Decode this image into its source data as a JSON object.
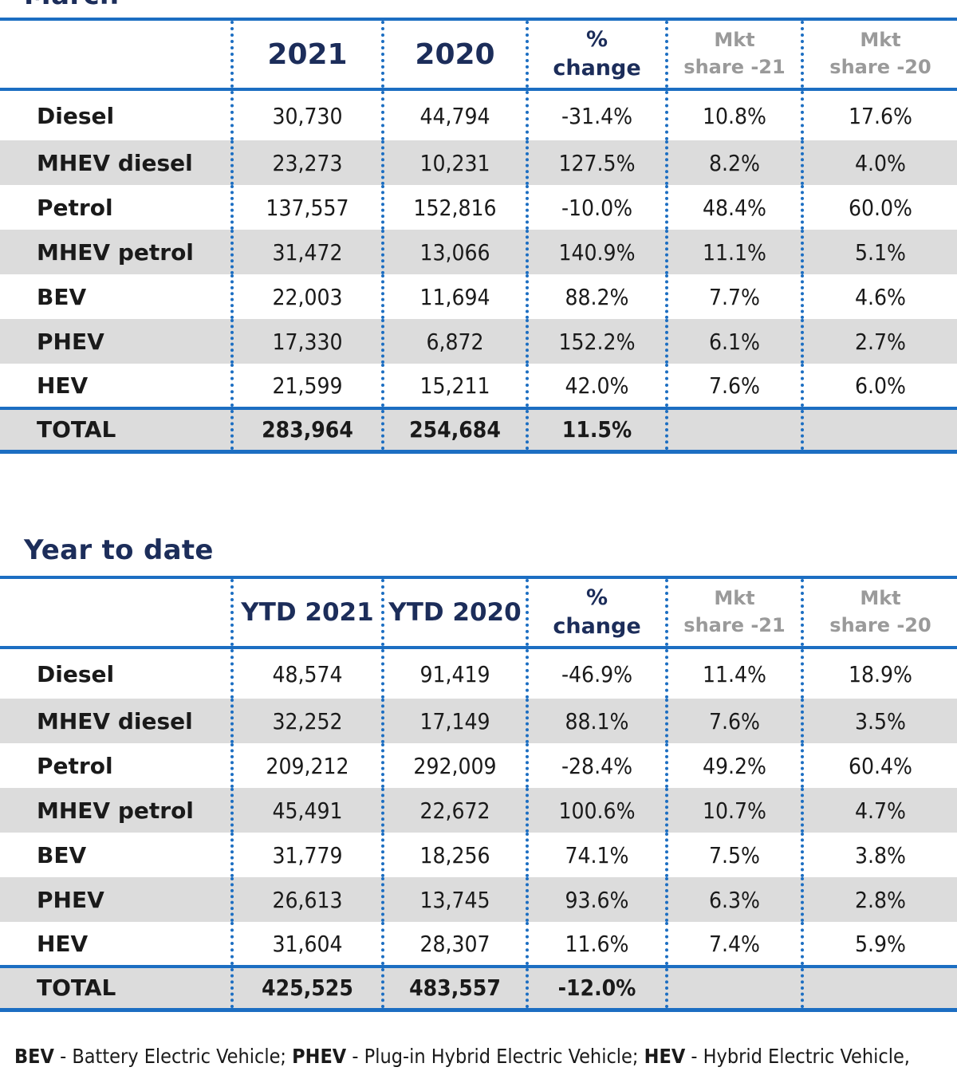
{
  "month": {
    "title": "March",
    "headers": {
      "category": "",
      "y1": "2021",
      "y2": "2020",
      "change_l1": "%",
      "change_l2": "change",
      "share1_l1": "Mkt",
      "share1_l2": "share -21",
      "share2_l1": "Mkt",
      "share2_l2": "share -20"
    },
    "rows": [
      {
        "label": "Diesel",
        "y1": "30,730",
        "y2": "44,794",
        "change": "-31.4%",
        "share1": "10.8%",
        "share2": "17.6%"
      },
      {
        "label": "MHEV diesel",
        "y1": "23,273",
        "y2": "10,231",
        "change": "127.5%",
        "share1": "8.2%",
        "share2": "4.0%"
      },
      {
        "label": "Petrol",
        "y1": "137,557",
        "y2": "152,816",
        "change": "-10.0%",
        "share1": "48.4%",
        "share2": "60.0%"
      },
      {
        "label": "MHEV petrol",
        "y1": "31,472",
        "y2": "13,066",
        "change": "140.9%",
        "share1": "11.1%",
        "share2": "5.1%"
      },
      {
        "label": "BEV",
        "y1": "22,003",
        "y2": "11,694",
        "change": "88.2%",
        "share1": "7.7%",
        "share2": "4.6%"
      },
      {
        "label": "PHEV",
        "y1": "17,330",
        "y2": "6,872",
        "change": "152.2%",
        "share1": "6.1%",
        "share2": "2.7%"
      },
      {
        "label": "HEV",
        "y1": "21,599",
        "y2": "15,211",
        "change": "42.0%",
        "share1": "7.6%",
        "share2": "6.0%"
      }
    ],
    "total": {
      "label": "TOTAL",
      "y1": "283,964",
      "y2": "254,684",
      "change": "11.5%",
      "share1": "",
      "share2": ""
    }
  },
  "ytd": {
    "title": "Year to date",
    "headers": {
      "category": "",
      "y1": "YTD 2021",
      "y2": "YTD 2020",
      "change_l1": "%",
      "change_l2": "change",
      "share1_l1": "Mkt",
      "share1_l2": "share -21",
      "share2_l1": "Mkt",
      "share2_l2": "share -20"
    },
    "rows": [
      {
        "label": "Diesel",
        "y1": "48,574",
        "y2": "91,419",
        "change": "-46.9%",
        "share1": "11.4%",
        "share2": "18.9%"
      },
      {
        "label": "MHEV diesel",
        "y1": "32,252",
        "y2": "17,149",
        "change": "88.1%",
        "share1": "7.6%",
        "share2": "3.5%"
      },
      {
        "label": "Petrol",
        "y1": "209,212",
        "y2": "292,009",
        "change": "-28.4%",
        "share1": "49.2%",
        "share2": "60.4%"
      },
      {
        "label": "MHEV petrol",
        "y1": "45,491",
        "y2": "22,672",
        "change": "100.6%",
        "share1": "10.7%",
        "share2": "4.7%"
      },
      {
        "label": "BEV",
        "y1": "31,779",
        "y2": "18,256",
        "change": "74.1%",
        "share1": "7.5%",
        "share2": "3.8%"
      },
      {
        "label": "PHEV",
        "y1": "26,613",
        "y2": "13,745",
        "change": "93.6%",
        "share1": "6.3%",
        "share2": "2.8%"
      },
      {
        "label": "HEV",
        "y1": "31,604",
        "y2": "28,307",
        "change": "11.6%",
        "share1": "7.4%",
        "share2": "5.9%"
      }
    ],
    "total": {
      "label": "TOTAL",
      "y1": "425,525",
      "y2": "483,557",
      "change": "-12.0%",
      "share1": "",
      "share2": ""
    }
  },
  "footnote": {
    "bev_abbr": "BEV",
    "bev_text": " - Battery Electric Vehicle; ",
    "phev_abbr": "PHEV",
    "phev_text": " - Plug-in Hybrid Electric Vehicle; ",
    "hev_abbr": "HEV",
    "hev_text": " - Hybrid Electric Vehicle,"
  },
  "colors": {
    "rule_blue": "#1c6ec2",
    "title_navy": "#1c2d5a",
    "shade_gray": "#dcdcdc",
    "share_header_gray": "#9a9a9a"
  }
}
